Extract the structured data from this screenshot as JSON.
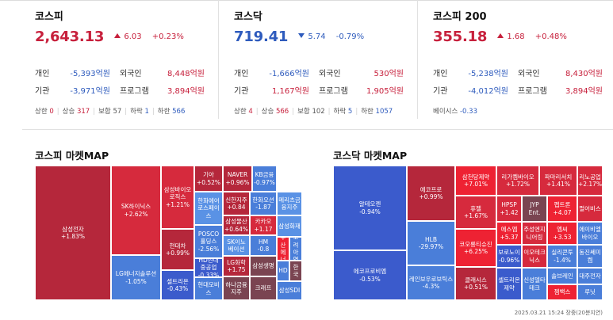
{
  "indices": [
    {
      "name": "코스피",
      "value": "2,643.13",
      "change": "6.03",
      "change_pct": "+0.23%",
      "direction": "up",
      "rows": [
        {
          "label": "개인",
          "value": "-5,393억원",
          "dir": "dn",
          "label2": "외국인",
          "value2": "8,448억원",
          "dir2": "up"
        },
        {
          "label": "기관",
          "value": "-3,971억원",
          "dir": "dn",
          "label2": "프로그램",
          "value2": "3,894억원",
          "dir2": "up"
        }
      ],
      "stats": [
        {
          "label": "상한",
          "value": "0",
          "dir": "up"
        },
        {
          "label": "상승",
          "value": "317",
          "dir": "up"
        },
        {
          "label": "보합",
          "value": "57",
          "dir": "ne"
        },
        {
          "label": "하락",
          "value": "1",
          "dir": "dn"
        },
        {
          "label": "하한",
          "value": "566",
          "dir": "dn"
        }
      ]
    },
    {
      "name": "코스닥",
      "value": "719.41",
      "change": "5.74",
      "change_pct": "-0.79%",
      "direction": "down",
      "rows": [
        {
          "label": "개인",
          "value": "-1,666억원",
          "dir": "dn",
          "label2": "외국인",
          "value2": "530억원",
          "dir2": "up"
        },
        {
          "label": "기관",
          "value": "1,167억원",
          "dir": "up",
          "label2": "프로그램",
          "value2": "1,905억원",
          "dir2": "up"
        }
      ],
      "stats": [
        {
          "label": "상한",
          "value": "4",
          "dir": "up"
        },
        {
          "label": "상승",
          "value": "566",
          "dir": "up"
        },
        {
          "label": "보합",
          "value": "102",
          "dir": "ne"
        },
        {
          "label": "하락",
          "value": "5",
          "dir": "dn"
        },
        {
          "label": "하한",
          "value": "1057",
          "dir": "dn"
        }
      ]
    },
    {
      "name": "코스피 200",
      "value": "355.18",
      "change": "1.68",
      "change_pct": "+0.48%",
      "direction": "up",
      "rows": [
        {
          "label": "개인",
          "value": "-5,238억원",
          "dir": "dn",
          "label2": "외국인",
          "value2": "8,430억원",
          "dir2": "up"
        },
        {
          "label": "기관",
          "value": "-4,012억원",
          "dir": "dn",
          "label2": "프로그램",
          "value2": "3,894억원",
          "dir2": "up"
        }
      ],
      "basis_label": "베이시스",
      "basis_value": "-0.33"
    }
  ],
  "kospi_map": {
    "title": "코스피 마켓MAP",
    "tiles": [
      {
        "name": "삼성전자",
        "value": "+1.83%",
        "color": "#b5273b"
      },
      {
        "name": "SK하이닉스",
        "value": "+2.62%",
        "color": "#d62a3d"
      },
      {
        "name": "LG에너지솔루션",
        "value": "-1.05%",
        "color": "#4a7ed9"
      },
      {
        "name": "삼성바이오로직스",
        "value": "+1.21%",
        "color": "#d62a3d"
      },
      {
        "name": "현대차",
        "value": "+0.99%",
        "color": "#b5273b"
      },
      {
        "name": "셀트리온",
        "value": "-0.43%",
        "color": "#3b5bcc"
      },
      {
        "name": "기아",
        "value": "+0.52%",
        "color": "#b5273b"
      },
      {
        "name": "NAVER",
        "value": "+0.96%",
        "color": "#b5273b"
      },
      {
        "name": "KB금융",
        "value": "-0.97%",
        "color": "#4a7ed9"
      },
      {
        "name": "한화에어로스페이스",
        "value": "",
        "color": "#5a92e5"
      },
      {
        "name": "신한지주",
        "value": "+0.84",
        "color": "#b5273b"
      },
      {
        "name": "한화오션",
        "value": "-1.87",
        "color": "#4a7ed9"
      },
      {
        "name": "메리츠금융지주",
        "value": "",
        "color": "#5a92e5"
      },
      {
        "name": "POSCO홀딩스",
        "value": "-2.56%",
        "color": "#4a7ed9"
      },
      {
        "name": "삼성물산",
        "value": "+0.64%",
        "color": "#b5273b"
      },
      {
        "name": "카카오",
        "value": "+1.17",
        "color": "#d62a3d"
      },
      {
        "name": "삼성화재",
        "value": "",
        "color": "#5a92e5"
      },
      {
        "name": "HD현대중공업",
        "value": "-0.33%",
        "color": "#3b5bcc"
      },
      {
        "name": "SK이노베이션",
        "value": "",
        "color": "#5a92e5"
      },
      {
        "name": "HM",
        "value": "-0.8",
        "color": "#4a7ed9"
      },
      {
        "name": "두산에너",
        "value": "",
        "color": "#ee2233"
      },
      {
        "name": "고려아연",
        "value": "",
        "color": "#4a7ed9"
      },
      {
        "name": "LG화학",
        "value": "+1.75",
        "color": "#b5273b"
      },
      {
        "name": "삼성생명",
        "value": "",
        "color": "#7a4451"
      },
      {
        "name": "HD",
        "value": "",
        "color": "#4a7ed9"
      },
      {
        "name": "한국",
        "value": "",
        "color": "#7a4451"
      },
      {
        "name": "한국전력",
        "value": "",
        "color": "#b5273b"
      },
      {
        "name": "현대모비스",
        "value": "",
        "color": "#4a7ed9"
      },
      {
        "name": "하나금융지주",
        "value": "",
        "color": "#7a4451"
      },
      {
        "name": "크래프",
        "value": "",
        "color": "#7a4451"
      },
      {
        "name": "삼성SDI",
        "value": "",
        "color": "#4a7ed9"
      }
    ]
  },
  "kosdaq_map": {
    "title": "코스닥 마켓MAP",
    "tiles": [
      {
        "name": "알테오젠",
        "value": "-0.94%",
        "color": "#3b5bcc"
      },
      {
        "name": "에코프로비엠",
        "value": "-0.53%",
        "color": "#3b5bcc"
      },
      {
        "name": "에코프로",
        "value": "+0.99%",
        "color": "#b5273b"
      },
      {
        "name": "HLB",
        "value": "-29.97%",
        "color": "#4a7ed9"
      },
      {
        "name": "레인보우로보틱스",
        "value": "-4.3%",
        "color": "#4a7ed9"
      },
      {
        "name": "삼천당제약",
        "value": "+7.01%",
        "color": "#ee2233"
      },
      {
        "name": "휴젤",
        "value": "+1.67%",
        "color": "#d62a3d"
      },
      {
        "name": "코오롱티슈진",
        "value": "+6.25%",
        "color": "#ee2233"
      },
      {
        "name": "클래시스",
        "value": "+0.51%",
        "color": "#b5273b"
      },
      {
        "name": "리가켐바이오",
        "value": "+1.72%",
        "color": "#d62a3d"
      },
      {
        "name": "파마리서치",
        "value": "+1.41%",
        "color": "#d62a3d"
      },
      {
        "name": "리노공업",
        "value": "+2.17%",
        "color": "#d62a3d"
      },
      {
        "name": "HPSP",
        "value": "+1.42",
        "color": "#d62a3d"
      },
      {
        "name": "JYP Ent.",
        "value": "",
        "color": "#7a4451"
      },
      {
        "name": "펩트론",
        "value": "+4.07",
        "color": "#ee2233"
      },
      {
        "name": "펄어비스",
        "value": "",
        "color": "#d62a3d"
      },
      {
        "name": "에스엠",
        "value": "+5.37",
        "color": "#ee2233"
      },
      {
        "name": "주성엔지니어링",
        "value": "",
        "color": "#d62a3d"
      },
      {
        "name": "엠씨",
        "value": "+3.53",
        "color": "#ee2233"
      },
      {
        "name": "에이비엘바이오",
        "value": "",
        "color": "#4a7ed9"
      },
      {
        "name": "보로노이",
        "value": "-0.96%",
        "color": "#3b5bcc"
      },
      {
        "name": "이오테크닉스",
        "value": "",
        "color": "#d62a3d"
      },
      {
        "name": "실리콘투",
        "value": "-1.4%",
        "color": "#4a7ed9"
      },
      {
        "name": "동진쎄미켐",
        "value": "",
        "color": "#4a7ed9"
      },
      {
        "name": "셀트리온제약",
        "value": "",
        "color": "#3b5bcc"
      },
      {
        "name": "신성델타테크",
        "value": "",
        "color": "#4a7ed9"
      },
      {
        "name": "솔브레인",
        "value": "",
        "color": "#4a7ed9"
      },
      {
        "name": "대주전자",
        "value": "",
        "color": "#4a7ed9"
      },
      {
        "name": "젬백스",
        "value": "",
        "color": "#ee2233"
      },
      {
        "name": "루닛",
        "value": "",
        "color": "#4a7ed9"
      }
    ]
  },
  "timestamp": "2025.03.21 15:24 장중(20분지연)"
}
